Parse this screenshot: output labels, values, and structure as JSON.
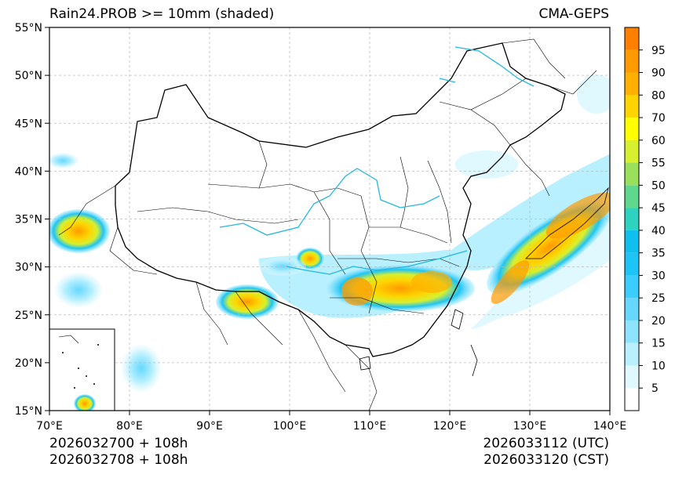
{
  "title": "Rain24.PROB >= 10mm (shaded)",
  "model": "CMA-GEPS",
  "init_utc": "2026032700 + 108h",
  "init_cst": "2026032708 + 108h",
  "valid_utc": "2026033112 (UTC)",
  "valid_cst": "2026033120 (CST)",
  "lat_labels": [
    "55°N",
    "50°N",
    "45°N",
    "40°N",
    "35°N",
    "30°N",
    "25°N",
    "20°N",
    "15°N"
  ],
  "lon_labels": [
    "70°E",
    "80°E",
    "90°E",
    "100°E",
    "110°E",
    "120°E",
    "130°E",
    "140°E"
  ],
  "colorbar": {
    "levels": [
      "5",
      "10",
      "15",
      "20",
      "25",
      "30",
      "35",
      "40",
      "45",
      "50",
      "55",
      "60",
      "70",
      "80",
      "90",
      "95"
    ],
    "colors": [
      "#ffffff",
      "#e0f8ff",
      "#b8f0ff",
      "#8ee4ff",
      "#66d8ff",
      "#3ccdff",
      "#1ec4f5",
      "#0fc0ee",
      "#2ed3c0",
      "#5fd88d",
      "#9ae05a",
      "#d6f030",
      "#ffff00",
      "#ffd400",
      "#ffb000",
      "#ff9a00",
      "#ff7f00"
    ]
  }
}
